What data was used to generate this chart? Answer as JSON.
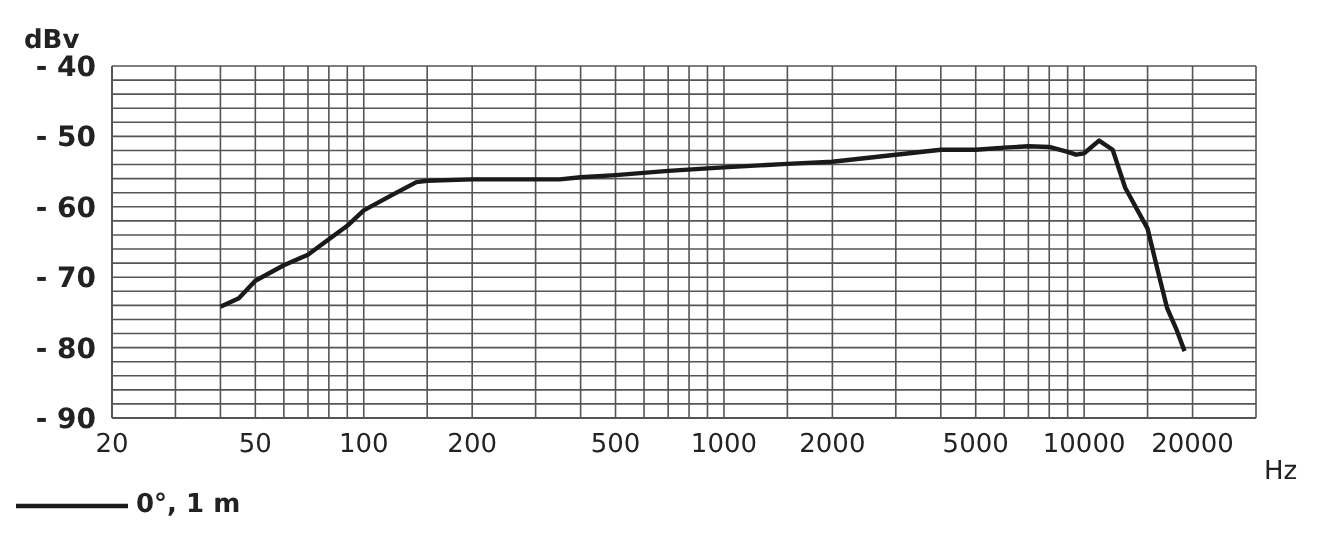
{
  "chart_data": {
    "type": "line",
    "xlabel": "Hz",
    "ylabel": "dBv",
    "x": [
      40,
      45,
      50,
      60,
      70,
      80,
      90,
      100,
      120,
      140,
      150,
      200,
      300,
      350,
      400,
      500,
      700,
      1000,
      1500,
      2000,
      3000,
      4000,
      5000,
      6000,
      7000,
      8000,
      9000,
      9500,
      10000,
      11000,
      12000,
      13000,
      15000,
      16000,
      17000,
      18000,
      19000
    ],
    "series": [
      {
        "name": "0°, 1 m",
        "color": "#1a1a1a",
        "values": [
          -74.2,
          -73,
          -70.5,
          -68.3,
          -66.8,
          -64.6,
          -62.7,
          -60.5,
          -58.3,
          -56.5,
          -56.3,
          -56.1,
          -56.1,
          -56.1,
          -55.8,
          -55.5,
          -54.9,
          -54.4,
          -53.9,
          -53.6,
          -52.6,
          -51.9,
          -51.9,
          -51.6,
          -51.4,
          -51.5,
          -52.2,
          -52.6,
          -52.4,
          -50.6,
          -51.9,
          -57.3,
          -63.1,
          -69,
          -74.4,
          -77.3,
          -80.5
        ]
      }
    ],
    "log": "x",
    "xlim": [
      20,
      30000
    ],
    "xticks": [
      20,
      {
        "value": 30,
        "label": null
      },
      {
        "value": 40,
        "label": null
      },
      50,
      {
        "value": 60,
        "label": null
      },
      {
        "value": 70,
        "label": null
      },
      {
        "value": 80,
        "label": null
      },
      {
        "value": 90,
        "label": null
      },
      100,
      {
        "value": 150,
        "label": null
      },
      200,
      {
        "value": 300,
        "label": null
      },
      {
        "value": 400,
        "label": null
      },
      500,
      {
        "value": 600,
        "label": null
      },
      {
        "value": 700,
        "label": null
      },
      {
        "value": 800,
        "label": null
      },
      {
        "value": 900,
        "label": null
      },
      1000,
      {
        "value": 1500,
        "label": null
      },
      2000,
      {
        "value": 3000,
        "label": null
      },
      {
        "value": 4000,
        "label": null
      },
      5000,
      {
        "value": 6000,
        "label": null
      },
      {
        "value": 7000,
        "label": null
      },
      {
        "value": 8000,
        "label": null
      },
      {
        "value": 9000,
        "label": null
      },
      10000,
      {
        "value": 15000,
        "label": null
      },
      20000
    ],
    "ylim": [
      -90,
      -40
    ],
    "yticks": [
      {
        "value": -90,
        "label": "- 90"
      },
      {
        "value": -88,
        "label": null
      },
      {
        "value": -86,
        "label": null
      },
      {
        "value": -84,
        "label": null
      },
      {
        "value": -82,
        "label": null
      },
      {
        "value": -80,
        "label": "- 80"
      },
      {
        "value": -78,
        "label": null
      },
      {
        "value": -76,
        "label": null
      },
      {
        "value": -74,
        "label": null
      },
      {
        "value": -72,
        "label": null
      },
      {
        "value": -70,
        "label": "- 70"
      },
      {
        "value": -68,
        "label": null
      },
      {
        "value": -66,
        "label": null
      },
      {
        "value": -64,
        "label": null
      },
      {
        "value": -62,
        "label": null
      },
      {
        "value": -60,
        "label": "- 60"
      },
      {
        "value": -58,
        "label": null
      },
      {
        "value": -56,
        "label": null
      },
      {
        "value": -54,
        "label": null
      },
      {
        "value": -52,
        "label": null
      },
      {
        "value": -50,
        "label": "- 50"
      },
      {
        "value": -48,
        "label": null
      },
      {
        "value": -46,
        "label": null
      },
      {
        "value": -44,
        "label": null
      },
      {
        "value": -42,
        "label": null
      },
      {
        "value": -40,
        "label": "- 40"
      }
    ],
    "grid": true,
    "legend": "bottom left",
    "marker": "none",
    "line_style": "solid"
  }
}
